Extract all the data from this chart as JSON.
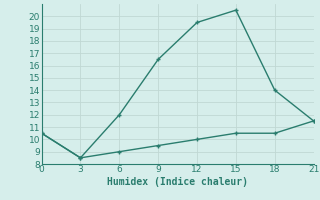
{
  "xlabel": "Humidex (Indice chaleur)",
  "line1_x": [
    0,
    3,
    6,
    9,
    12,
    15,
    18,
    21
  ],
  "line1_y": [
    10.5,
    8.5,
    12.0,
    16.5,
    19.5,
    20.5,
    14.0,
    11.5
  ],
  "line2_x": [
    0,
    3,
    6,
    9,
    12,
    15,
    18,
    21
  ],
  "line2_y": [
    10.5,
    8.5,
    9.0,
    9.5,
    10.0,
    10.5,
    10.5,
    11.5
  ],
  "line_color": "#2a7d6e",
  "bg_color": "#d6eeeb",
  "grid_color": "#c0d8d4",
  "axis_color": "#2a7d6e",
  "xlim": [
    0,
    21
  ],
  "ylim": [
    8,
    21
  ],
  "xticks": [
    0,
    3,
    6,
    9,
    12,
    15,
    18,
    21
  ],
  "yticks": [
    8,
    9,
    10,
    11,
    12,
    13,
    14,
    15,
    16,
    17,
    18,
    19,
    20
  ],
  "font_size": 6.5,
  "marker_size": 3.5,
  "line_width": 1.0
}
